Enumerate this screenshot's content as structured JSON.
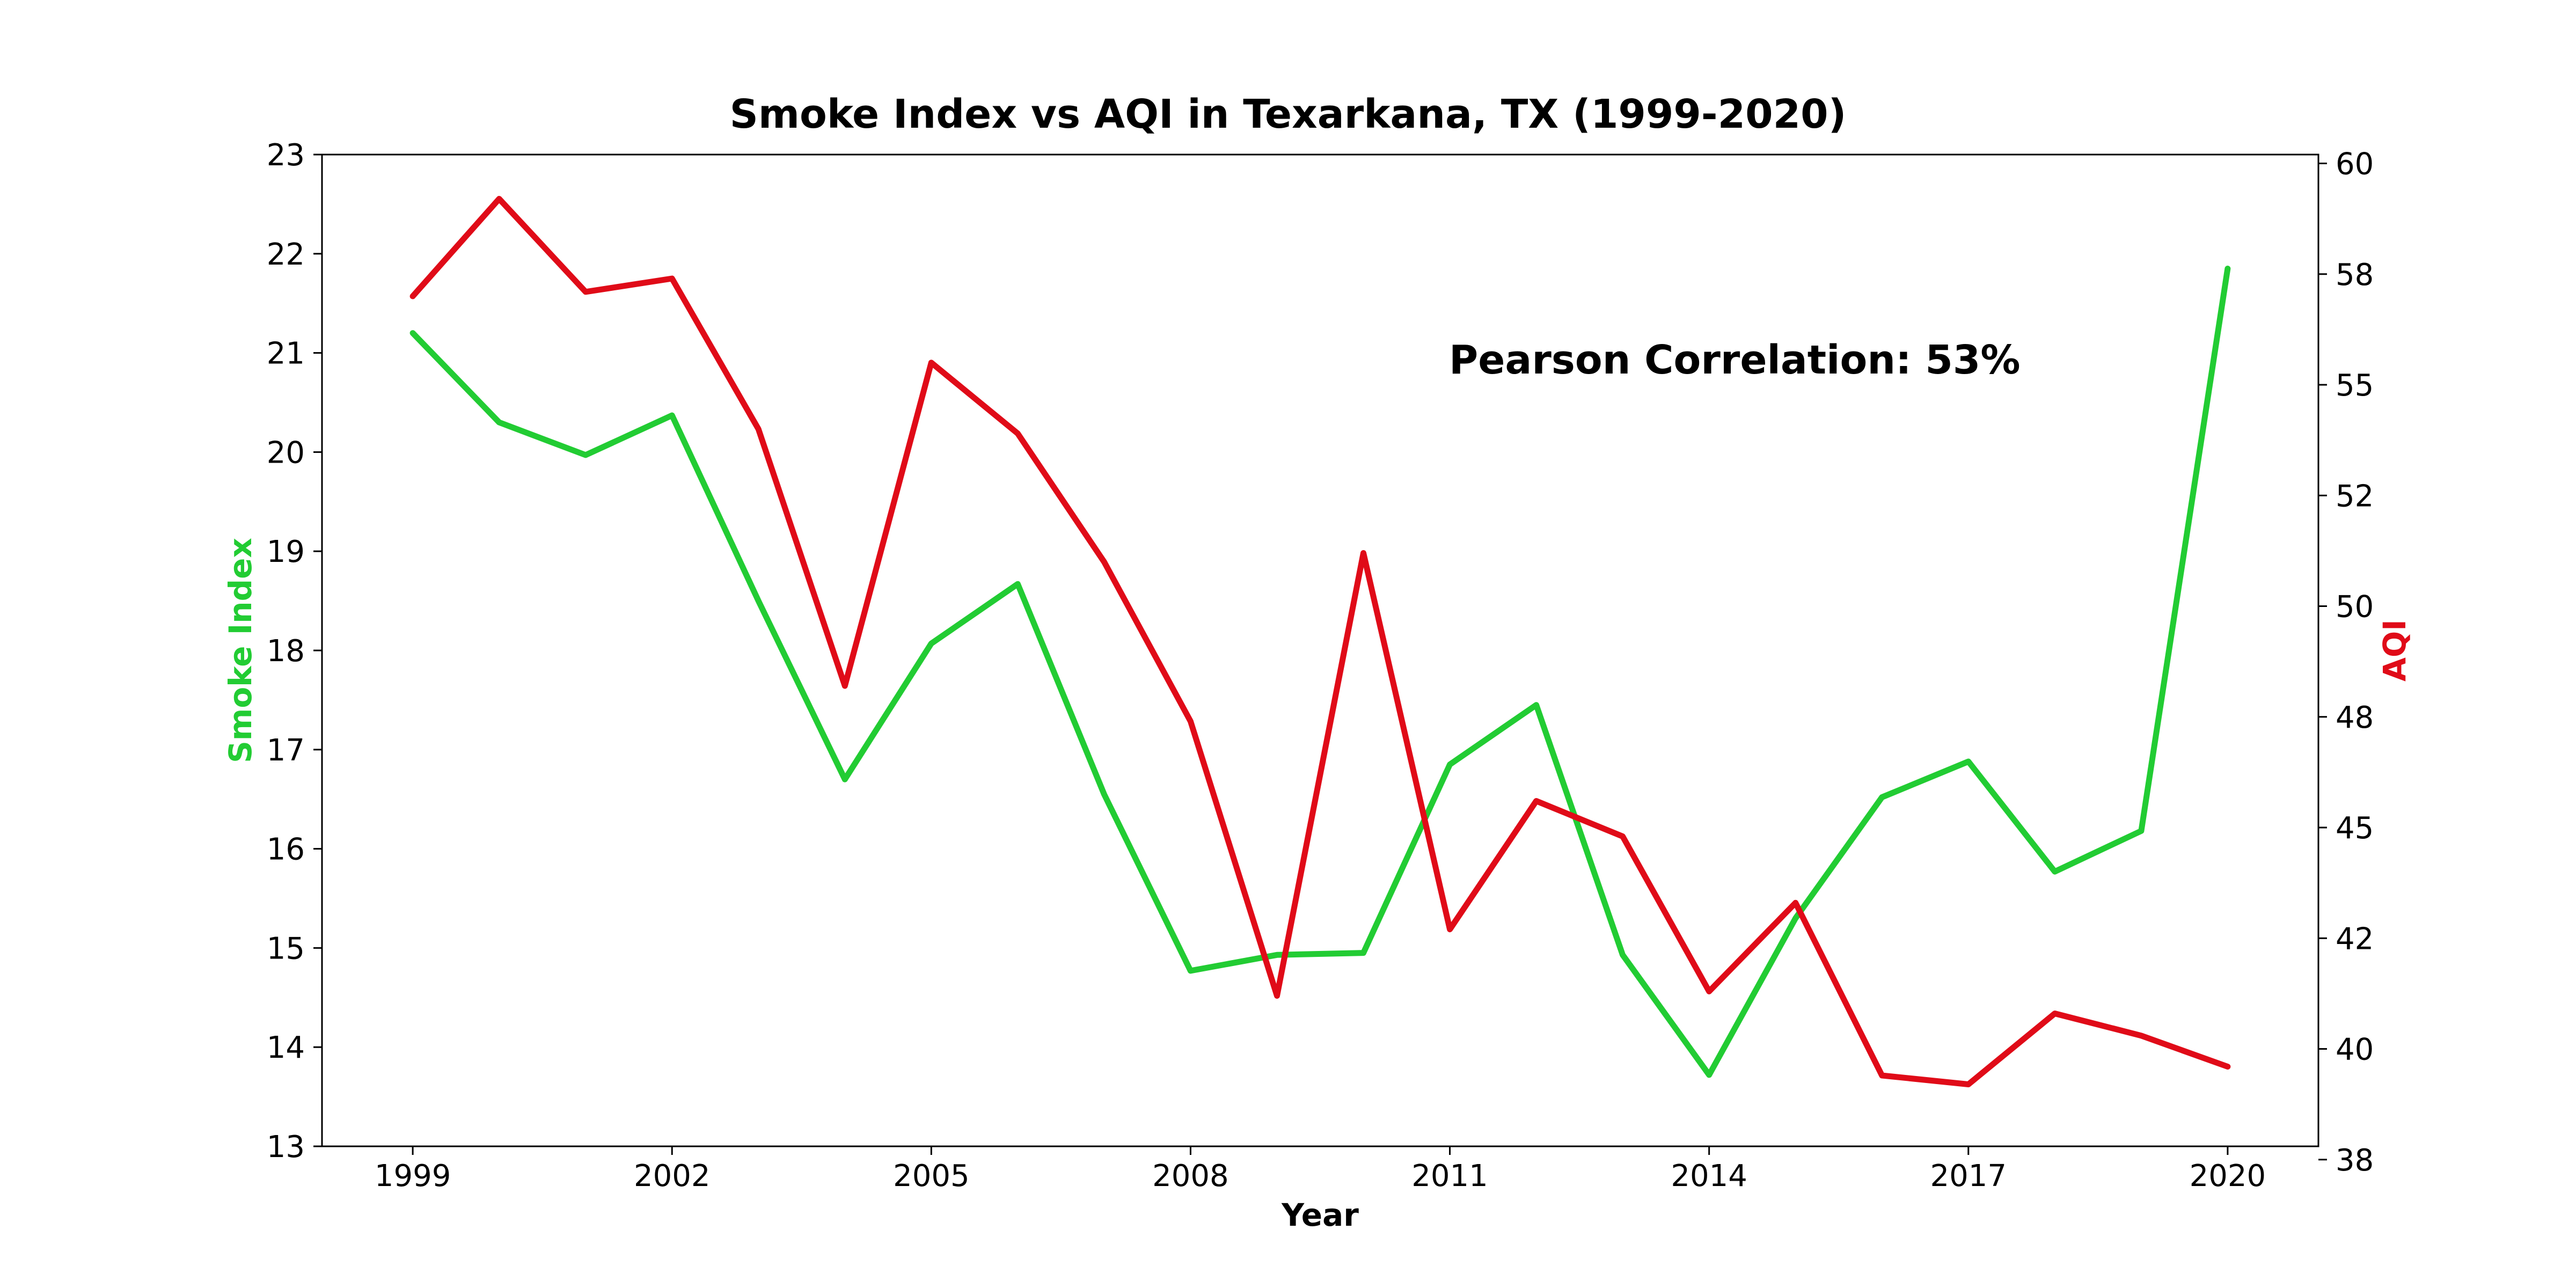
{
  "chart_data": {
    "type": "line",
    "title": "Smoke Index vs AQI in Texarkana, TX (1999-2020)",
    "xlabel": "Year",
    "ylabel_left": "Smoke Index",
    "ylabel_right": "AQI",
    "x": [
      1999,
      2000,
      2001,
      2002,
      2003,
      2004,
      2005,
      2006,
      2007,
      2008,
      2009,
      2010,
      2011,
      2012,
      2013,
      2014,
      2015,
      2016,
      2017,
      2018,
      2019,
      2020
    ],
    "x_ticks": [
      "1999",
      "2002",
      "2005",
      "2008",
      "2011",
      "2014",
      "2017",
      "2020"
    ],
    "xlim": [
      1997.95,
      2021.05
    ],
    "y_left_ticks": [
      "13",
      "14",
      "15",
      "16",
      "17",
      "18",
      "19",
      "20",
      "21",
      "22",
      "23"
    ],
    "y_left_lim": [
      13,
      23
    ],
    "y_right_ticks": [
      "38",
      "40",
      "42",
      "45",
      "48",
      "50",
      "52",
      "55",
      "58",
      "60"
    ],
    "y_right_lim": [
      37.8,
      60.2
    ],
    "grid": false,
    "series": [
      {
        "name": "Smoke Index",
        "axis": "left",
        "color": "#22cc33",
        "values": [
          21.2,
          20.3,
          19.97,
          20.37,
          18.5,
          16.7,
          18.07,
          18.67,
          16.55,
          14.77,
          14.93,
          14.95,
          16.85,
          17.45,
          14.93,
          13.72,
          15.3,
          16.52,
          16.88,
          15.77,
          16.18,
          21.85
        ]
      },
      {
        "name": "AQI",
        "axis": "right",
        "color": "#e00b18",
        "values": [
          57.0,
          59.2,
          57.1,
          57.4,
          54.0,
          48.2,
          55.5,
          53.9,
          51.0,
          47.4,
          41.2,
          51.2,
          42.7,
          45.6,
          44.8,
          41.3,
          43.3,
          39.4,
          39.2,
          40.8,
          40.3,
          39.6
        ]
      }
    ],
    "annotation": "Pearson Correlation: 53%"
  }
}
